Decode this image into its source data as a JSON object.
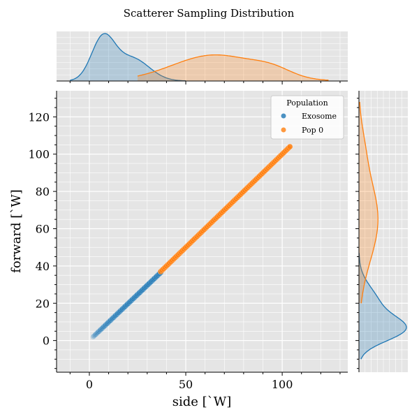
{
  "chart_data": {
    "type": "scatter",
    "title": "Scatterer Sampling Distribution",
    "xlabel": "side [`W]",
    "ylabel": "forward [`W]",
    "xlim": [
      -17,
      134
    ],
    "ylim": [
      -17,
      134
    ],
    "xticks": [
      0,
      50,
      100
    ],
    "yticks": [
      0,
      20,
      40,
      60,
      80,
      100,
      120
    ],
    "xtick_labels": [
      "0",
      "50",
      "100"
    ],
    "ytick_labels": [
      "0",
      "20",
      "40",
      "60",
      "80",
      "100",
      "120"
    ],
    "grid": true,
    "legend": {
      "title": "Population",
      "placement": "top-right"
    },
    "series": [
      {
        "name": "Exosome",
        "color": "#1f77b4",
        "x_range": [
          2,
          37
        ],
        "y_range": [
          2,
          36.5
        ],
        "n_points": 70
      },
      {
        "name": "Pop 0",
        "color": "#ff7f0e",
        "x_range": [
          37,
          104
        ],
        "y_range": [
          37,
          104
        ],
        "n_points": 90
      }
    ],
    "marginal_x": {
      "type": "kde",
      "series": [
        {
          "name": "Exosome",
          "mode": 7,
          "support": [
            -10,
            50
          ]
        },
        {
          "name": "Pop 0",
          "mode": 65,
          "support": [
            25,
            124
          ]
        }
      ]
    },
    "marginal_y": {
      "type": "kde",
      "series": [
        {
          "name": "Exosome",
          "mode": 6,
          "support": [
            -10,
            47
          ]
        },
        {
          "name": "Pop 0",
          "mode": 65,
          "support": [
            20,
            128
          ]
        }
      ]
    }
  }
}
